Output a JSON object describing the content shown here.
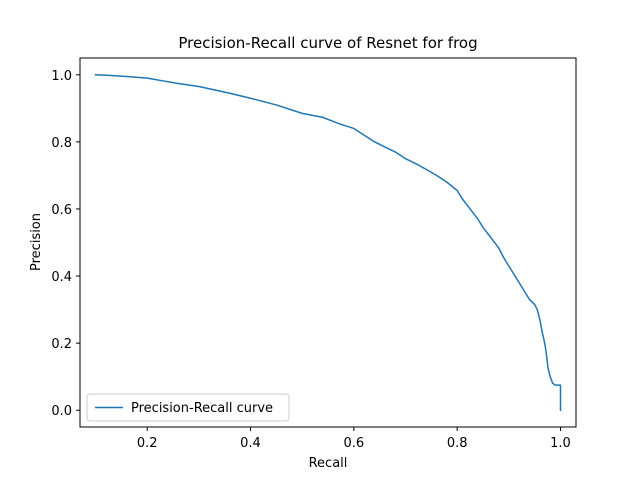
{
  "chart_data": {
    "type": "line",
    "title": "Precision-Recall curve of Resnet for frog",
    "xlabel": "Recall",
    "ylabel": "Precision",
    "xlim": [
      0.07,
      1.03
    ],
    "ylim": [
      -0.05,
      1.05
    ],
    "xticks": [
      0.2,
      0.4,
      0.6,
      0.8,
      1.0
    ],
    "xtick_labels": [
      "0.2",
      "0.4",
      "0.6",
      "0.8",
      "1.0"
    ],
    "yticks": [
      0.0,
      0.2,
      0.4,
      0.6,
      0.8,
      1.0
    ],
    "ytick_labels": [
      "0.0",
      "0.2",
      "0.4",
      "0.6",
      "0.8",
      "1.0"
    ],
    "grid": false,
    "legend_position": "lower-left",
    "series": [
      {
        "name": "Precision-Recall curve",
        "color": "#1f77b4",
        "x": [
          0.1,
          0.13,
          0.16,
          0.2,
          0.23,
          0.26,
          0.3,
          0.33,
          0.36,
          0.4,
          0.42,
          0.45,
          0.48,
          0.5,
          0.54,
          0.57,
          0.6,
          0.62,
          0.64,
          0.66,
          0.68,
          0.7,
          0.72,
          0.74,
          0.76,
          0.78,
          0.8,
          0.81,
          0.82,
          0.83,
          0.84,
          0.85,
          0.86,
          0.87,
          0.88,
          0.89,
          0.9,
          0.91,
          0.92,
          0.93,
          0.94,
          0.95,
          0.955,
          0.96,
          0.965,
          0.968,
          0.97,
          0.972,
          0.974,
          0.976,
          0.98,
          0.985,
          0.99,
          1.0,
          1.0
        ],
        "y": [
          1.0,
          0.998,
          0.995,
          0.99,
          0.982,
          0.974,
          0.965,
          0.955,
          0.945,
          0.93,
          0.922,
          0.91,
          0.895,
          0.885,
          0.873,
          0.855,
          0.84,
          0.82,
          0.8,
          0.785,
          0.77,
          0.75,
          0.735,
          0.718,
          0.7,
          0.68,
          0.655,
          0.63,
          0.61,
          0.59,
          0.57,
          0.545,
          0.525,
          0.505,
          0.485,
          0.455,
          0.43,
          0.405,
          0.38,
          0.355,
          0.33,
          0.315,
          0.3,
          0.27,
          0.23,
          0.21,
          0.195,
          0.175,
          0.15,
          0.125,
          0.1,
          0.08,
          0.075,
          0.075,
          0.0
        ]
      }
    ]
  }
}
